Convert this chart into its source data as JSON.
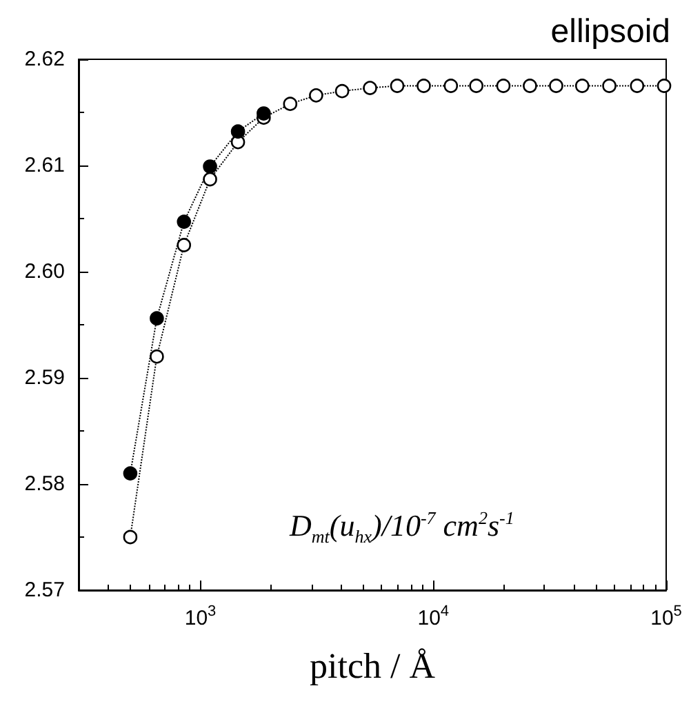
{
  "chart_data": {
    "type": "line",
    "title": "ellipsoid",
    "xlabel": "pitch / Å",
    "annotations": [
      "D$_{mt}$(u$_{hx}$)/10$^{-7}$ cm$^{2}$s$^{-1}$"
    ],
    "log": "x",
    "xlim": [
      300,
      100000
    ],
    "xticks": [
      {
        "value": 1000,
        "label": "10$^{3}$"
      },
      {
        "value": 10000,
        "label": "10$^{4}$"
      },
      {
        "value": 100000,
        "label": "10$^{5}$"
      }
    ],
    "ylim": [
      2.57,
      2.62
    ],
    "yticks": [
      2.57,
      2.58,
      2.59,
      {
        "value": 2.6,
        "label": "2.60"
      },
      2.61,
      2.62
    ],
    "grid": false,
    "marker": "circle",
    "line_style": "dotted",
    "series": [
      {
        "color": "#000000",
        "x": [
          500,
          650,
          850,
          1100,
          1450,
          1870
        ],
        "values": [
          2.581,
          2.5956,
          2.6047,
          2.6099,
          2.6132,
          2.6149
        ]
      },
      {
        "color": "#ffffff",
        "x": [
          500,
          650,
          850,
          1100,
          1450,
          1870,
          2430,
          3140,
          4060,
          5350,
          7000,
          9100,
          11900,
          15300,
          20000,
          26000,
          33700,
          43600,
          57000,
          75000,
          98000
        ],
        "values": [
          2.575,
          2.592,
          2.6025,
          2.6087,
          2.6122,
          2.6145,
          2.6158,
          2.6166,
          2.617,
          2.6173,
          2.6175,
          2.6175,
          2.6175,
          2.6175,
          2.6175,
          2.6175,
          2.6175,
          2.6175,
          2.6175,
          2.6175,
          2.6175
        ]
      }
    ]
  }
}
